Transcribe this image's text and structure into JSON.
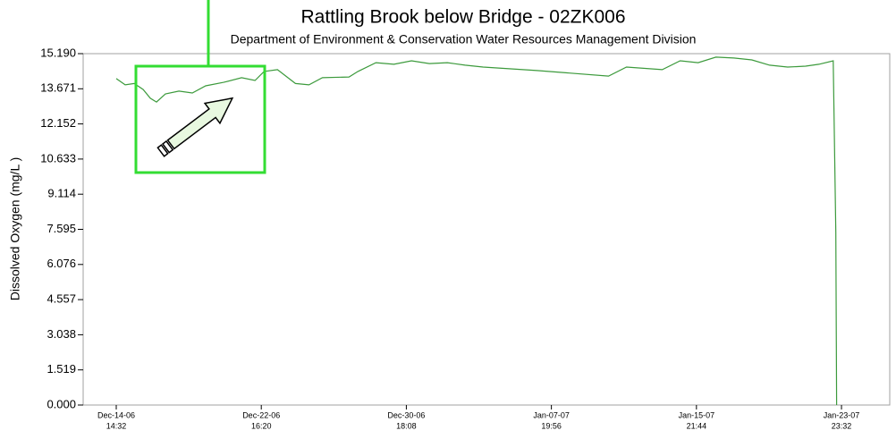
{
  "chart_data": {
    "type": "line",
    "title": "Rattling Brook below Bridge - 02ZK006",
    "subtitle": "Department of Environment & Conservation Water Resources Management Division",
    "y_label": "Dissolved Oxygen (mg/L )",
    "xlim": [
      "2006-12-12T18:20",
      "2007-01-26T16:00"
    ],
    "xticks": [
      {
        "value": "2006-12-14T14:32",
        "label": [
          "Dec-14-06",
          "14:32"
        ]
      },
      {
        "value": "2006-12-22T16:20",
        "label": [
          "Dec-22-06",
          "16:20"
        ]
      },
      {
        "value": "2006-12-30T18:08",
        "label": [
          "Dec-30-06",
          "18:08"
        ]
      },
      {
        "value": "2007-01-07T19:56",
        "label": [
          "Jan-07-07",
          "19:56"
        ]
      },
      {
        "value": "2007-01-15T21:44",
        "label": [
          "Jan-15-07",
          "21:44"
        ]
      },
      {
        "value": "2007-01-23T23:32",
        "label": [
          "Jan-23-07",
          "23:32"
        ]
      }
    ],
    "ylim": [
      0,
      15.19
    ],
    "yticks": [
      {
        "value": 0,
        "label": "0.000"
      },
      1.519,
      3.038,
      4.557,
      6.076,
      7.595,
      9.114,
      10.633,
      12.152,
      13.671,
      {
        "value": 15.19,
        "label": "15.190"
      }
    ],
    "x": [
      "2006-12-14T14:32",
      "2006-12-15T02:30",
      "2006-12-15T14:30",
      "2006-12-16T02:30",
      "2006-12-16T12:00",
      "2006-12-16T20:15",
      "2006-12-17T08:15",
      "2006-12-18T02:15",
      "2006-12-18T20:15",
      "2006-12-19T14:00",
      "2006-12-20T14:00",
      "2006-12-21T14:00",
      "2006-12-22T08:00",
      "2006-12-22T20:00",
      "2006-12-23T14:00",
      "2006-12-24T14:00",
      "2006-12-25T08:00",
      "2006-12-26T02:00",
      "2006-12-27T13:30",
      "2006-12-28T01:30",
      "2006-12-29T01:30",
      "2006-12-30T01:30",
      "2006-12-31T01:00",
      "2007-01-01T01:00",
      "2007-01-02T01:00",
      "2007-01-03T00:45",
      "2007-01-04T00:45",
      "2007-01-07T00:30",
      "2007-01-11T00:15",
      "2007-01-12T00:15",
      "2007-01-14T00:00",
      "2007-01-15T00:00",
      "2007-01-16T00:00",
      "2007-01-16T23:45",
      "2007-01-17T23:45",
      "2007-01-18T23:45",
      "2007-01-19T23:30",
      "2007-01-20T23:30",
      "2007-01-21T23:30",
      "2007-01-22T17:15",
      "2007-01-23T12:30",
      "2007-01-23T16:00",
      "2007-01-23T17:00"
    ],
    "series": [
      {
        "name": "Dissolved Oxygen",
        "color": "#3c9a3c",
        "values": [
          14.11,
          13.84,
          13.9,
          13.64,
          13.26,
          13.1,
          13.45,
          13.57,
          13.49,
          13.8,
          13.95,
          14.15,
          14.03,
          14.42,
          14.5,
          13.9,
          13.84,
          14.15,
          14.18,
          14.42,
          14.8,
          14.73,
          14.88,
          14.76,
          14.8,
          14.69,
          14.61,
          14.46,
          14.22,
          14.61,
          14.5,
          14.88,
          14.8,
          15.04,
          15.0,
          14.92,
          14.69,
          14.61,
          14.65,
          14.73,
          14.88,
          7.46,
          0.0
        ]
      }
    ]
  }
}
